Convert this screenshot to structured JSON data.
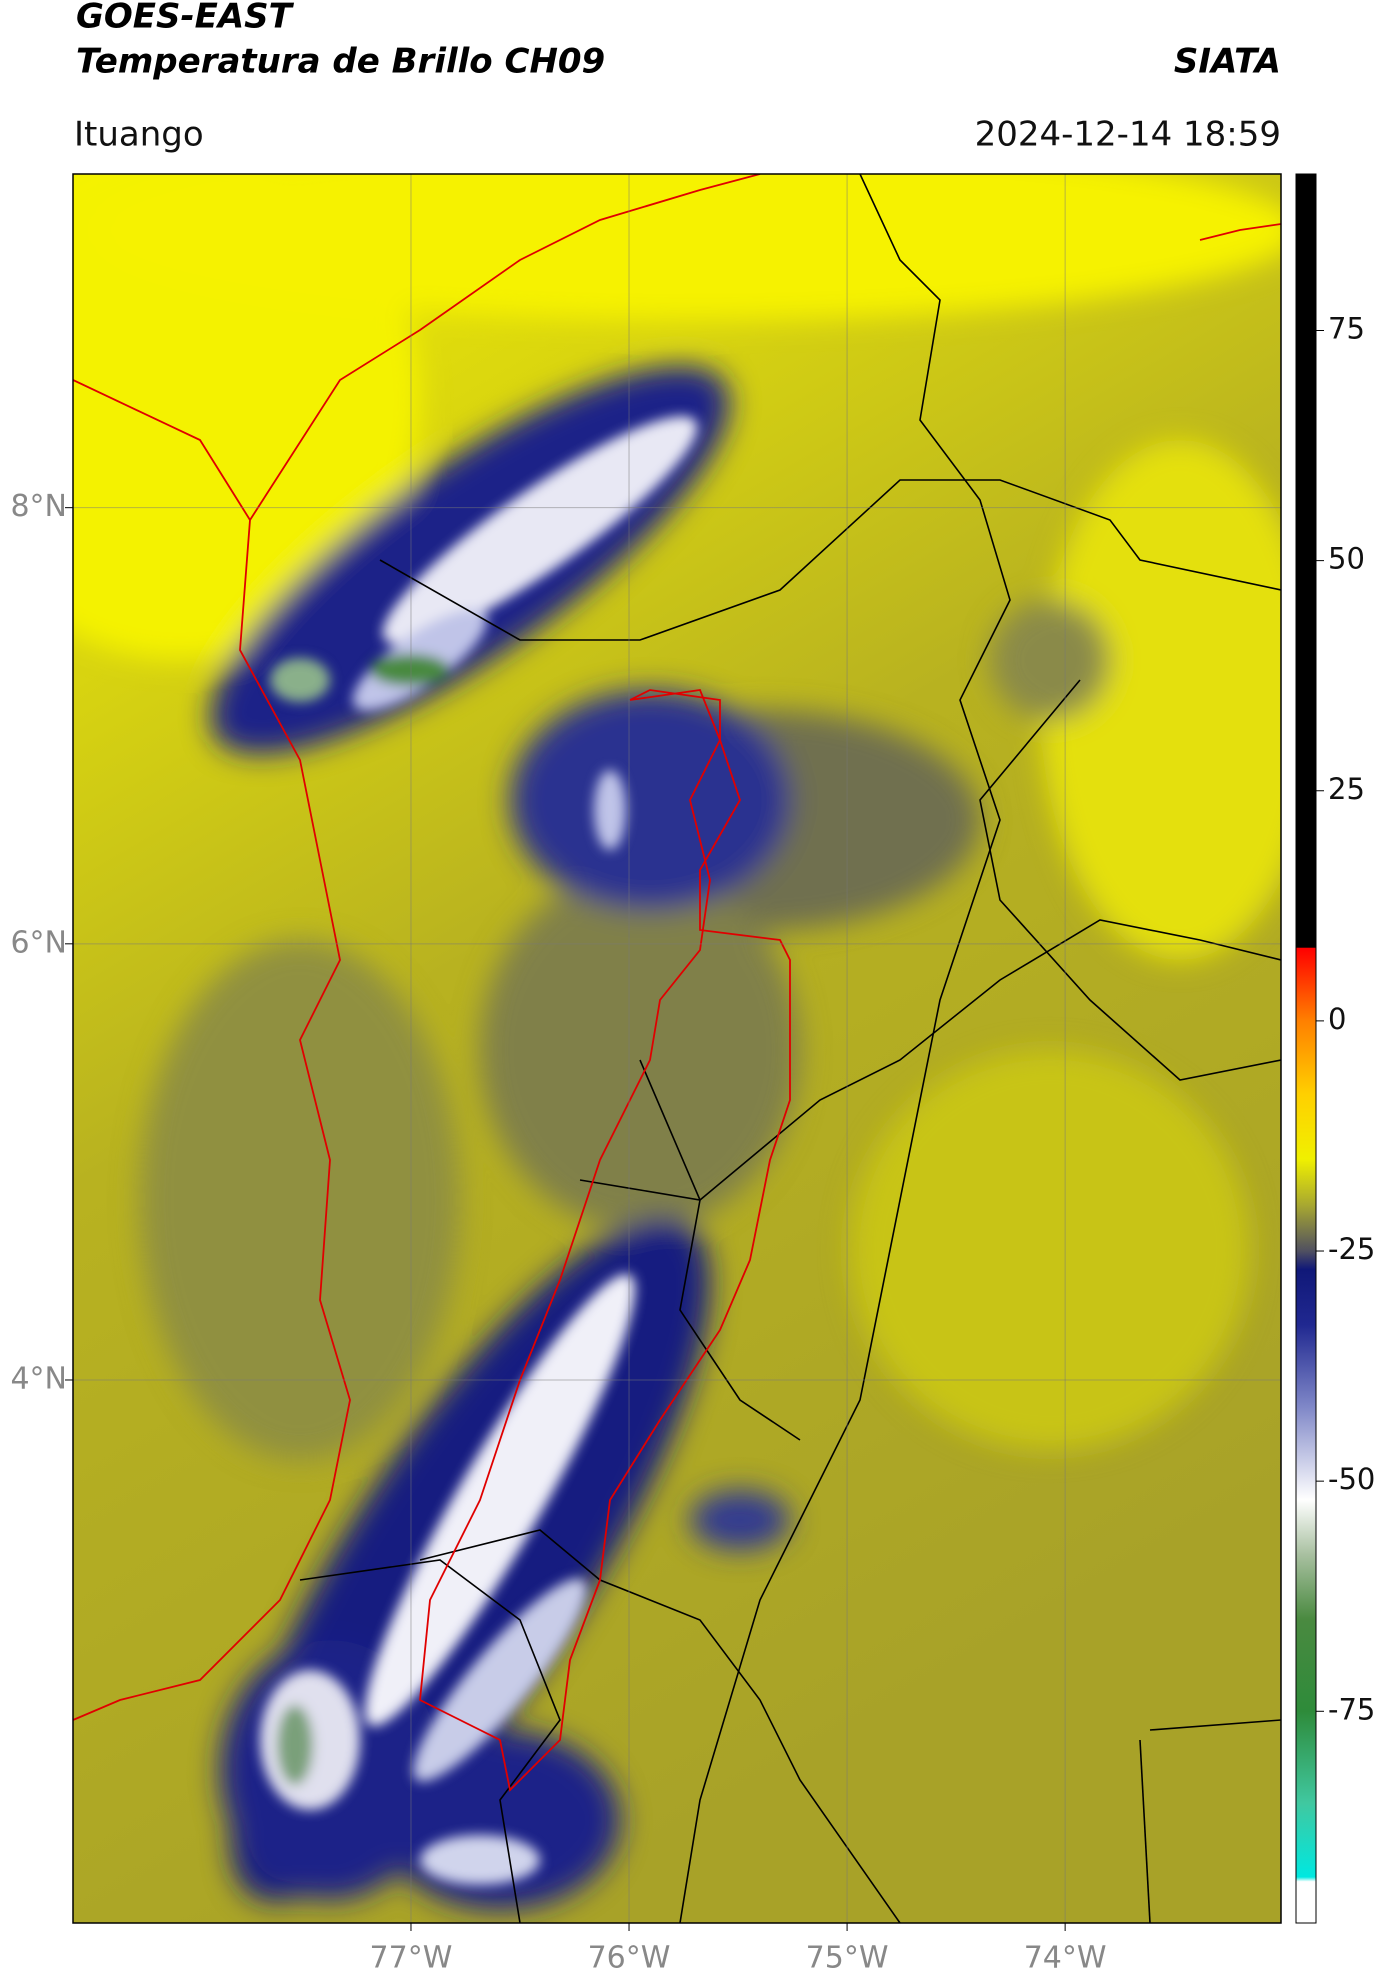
{
  "map": {
    "title": "GOES-EAST",
    "subtitle": "Temperatura de Brillo CH09",
    "brand": "SIATA",
    "region": "Ituango",
    "timestamp": "2024-12-14 18:59",
    "xlim": [
      -78.55,
      -73.01
    ],
    "ylim": [
      1.51,
      9.53
    ],
    "xticks": [
      {
        "value": -77,
        "label": "77°W"
      },
      {
        "value": -76,
        "label": "76°W"
      },
      {
        "value": -75,
        "label": "75°W"
      },
      {
        "value": -74,
        "label": "74°W"
      }
    ],
    "yticks": [
      {
        "value": 8,
        "label": "8°N"
      },
      {
        "value": 6,
        "label": "6°N"
      },
      {
        "value": 4,
        "label": "4°N"
      }
    ],
    "grid": true,
    "colorbar": {
      "range": [
        -98,
        92
      ],
      "ticks": [
        75,
        50,
        25,
        0,
        -25,
        -50,
        -75
      ],
      "stops": [
        {
          "value": -98,
          "color": "#ffffff"
        },
        {
          "value": -93.5,
          "color": "#ffffff"
        },
        {
          "value": -93,
          "color": "#00e8e0"
        },
        {
          "value": -85,
          "color": "#40c8a0"
        },
        {
          "value": -75,
          "color": "#2e8b3a"
        },
        {
          "value": -65,
          "color": "#4a8a40"
        },
        {
          "value": -58,
          "color": "#a8c0a0"
        },
        {
          "value": -52,
          "color": "#ffffff"
        },
        {
          "value": -42,
          "color": "#8088c8"
        },
        {
          "value": -33,
          "color": "#202890"
        },
        {
          "value": -27,
          "color": "#101878"
        },
        {
          "value": -25,
          "color": "#505060"
        },
        {
          "value": -20,
          "color": "#a8a830"
        },
        {
          "value": -15,
          "color": "#f0f000"
        },
        {
          "value": -8,
          "color": "#ffd000"
        },
        {
          "value": 0,
          "color": "#ff8000"
        },
        {
          "value": 7.9,
          "color": "#ff0000"
        },
        {
          "value": 8,
          "color": "#000000"
        },
        {
          "value": 92,
          "color": "#000000"
        }
      ]
    }
  }
}
